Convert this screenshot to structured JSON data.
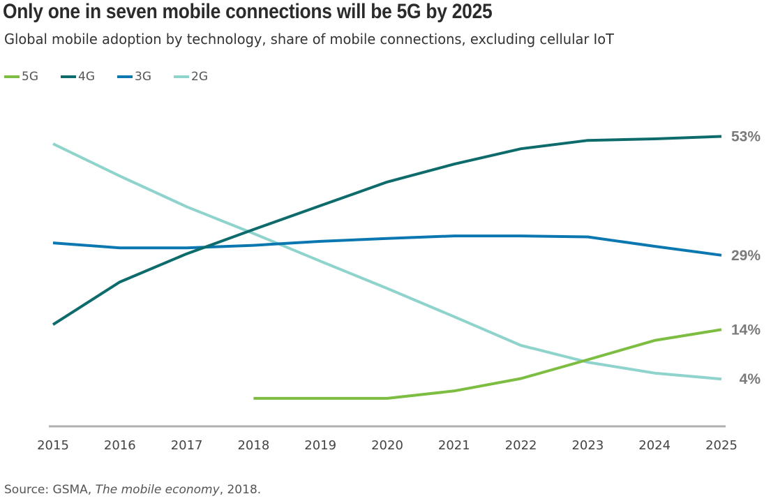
{
  "title": "Only one in seven mobile connections will be 5G by 2025",
  "subtitle": "Global mobile adoption by technology, share of mobile connections, excluding cellular IoT",
  "source": {
    "prefix": "Source: GSMA, ",
    "italic": "The mobile economy",
    "suffix": ", 2018."
  },
  "chart_data": {
    "type": "line",
    "x": [
      "2015",
      "2016",
      "2017",
      "2018",
      "2019",
      "2020",
      "2021",
      "2022",
      "2023",
      "2024",
      "2025"
    ],
    "series": [
      {
        "name": "5G",
        "color": "#7dbd42",
        "values": [
          null,
          null,
          null,
          0.1,
          0.1,
          0.1,
          1.6,
          4.1,
          7.9,
          11.8,
          14
        ]
      },
      {
        "name": "4G",
        "color": "#0e6b6b",
        "values": [
          15,
          23.6,
          29.3,
          34.2,
          39.0,
          43.8,
          47.4,
          50.5,
          52.2,
          52.5,
          53
        ]
      },
      {
        "name": "3G",
        "color": "#0a77b0",
        "values": [
          31.5,
          30.5,
          30.5,
          31.0,
          31.8,
          32.4,
          32.9,
          32.9,
          32.7,
          30.8,
          29
        ]
      },
      {
        "name": "2G",
        "color": "#8fd3cd",
        "values": [
          51.5,
          45.0,
          38.8,
          33.4,
          27.8,
          22.3,
          16.6,
          10.8,
          7.4,
          5.2,
          4
        ]
      }
    ],
    "end_labels": [
      "53%",
      "29%",
      "14%",
      "4%"
    ],
    "ylim": [
      -4,
      58
    ],
    "grid": false,
    "legend": "top-left"
  }
}
